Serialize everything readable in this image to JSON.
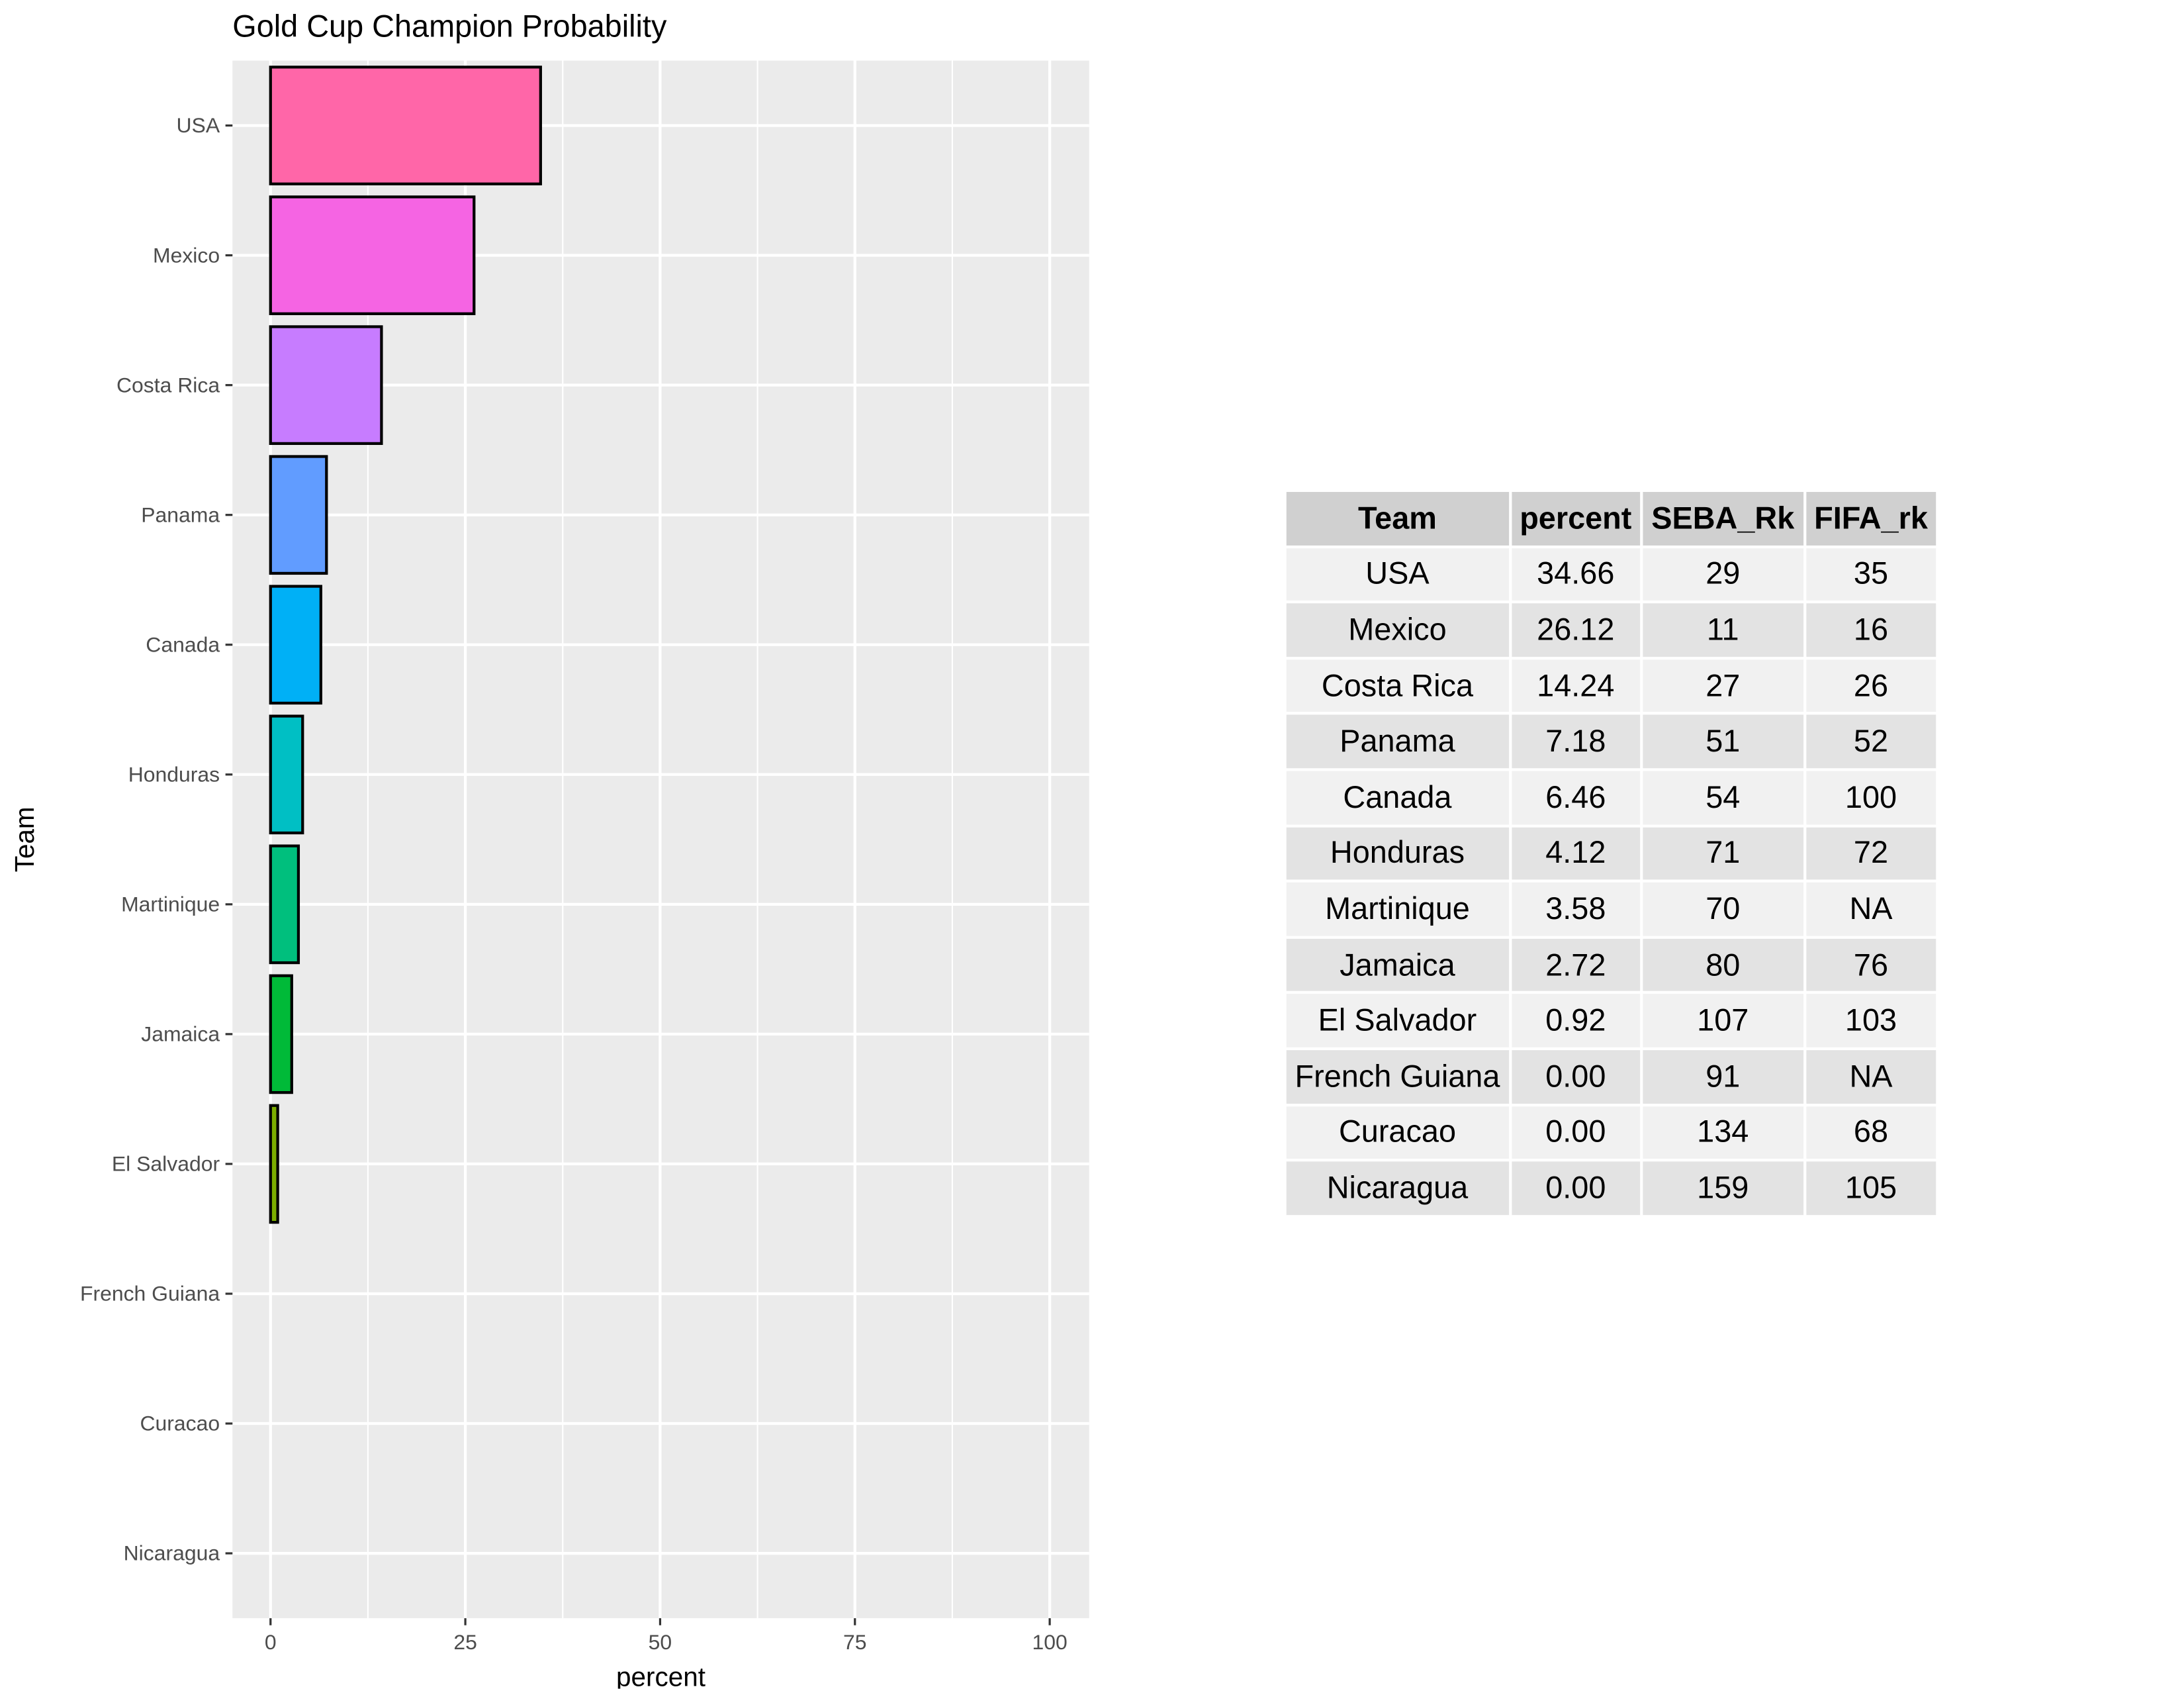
{
  "chart_data": {
    "type": "bar",
    "orientation": "horizontal",
    "title": "Gold Cup Champion Probability",
    "xlabel": "percent",
    "ylabel": "Team",
    "xlim": [
      0,
      100
    ],
    "xticks": [
      0,
      25,
      50,
      75,
      100
    ],
    "categories": [
      "USA",
      "Mexico",
      "Costa Rica",
      "Panama",
      "Canada",
      "Honduras",
      "Martinique",
      "Jamaica",
      "El Salvador",
      "French Guiana",
      "Curacao",
      "Nicaragua"
    ],
    "values": [
      34.66,
      26.12,
      14.24,
      7.18,
      6.46,
      4.12,
      3.58,
      2.72,
      0.92,
      0.0,
      0.0,
      0.0
    ],
    "colors": [
      "#FF66A8",
      "#F564E3",
      "#C77CFF",
      "#619CFF",
      "#00B0F6",
      "#00BFC4",
      "#00BF7D",
      "#00BA38",
      "#7CAE00",
      "#AEA200",
      "#DE8C00",
      "#F8766D"
    ],
    "grid": true
  },
  "table": {
    "headers": [
      "Team",
      "percent",
      "SEBA_Rk",
      "FIFA_rk"
    ],
    "rows": [
      [
        "USA",
        "34.66",
        "29",
        "35"
      ],
      [
        "Mexico",
        "26.12",
        "11",
        "16"
      ],
      [
        "Costa Rica",
        "14.24",
        "27",
        "26"
      ],
      [
        "Panama",
        "7.18",
        "51",
        "52"
      ],
      [
        "Canada",
        "6.46",
        "54",
        "100"
      ],
      [
        "Honduras",
        "4.12",
        "71",
        "72"
      ],
      [
        "Martinique",
        "3.58",
        "70",
        "NA"
      ],
      [
        "Jamaica",
        "2.72",
        "80",
        "76"
      ],
      [
        "El Salvador",
        "0.92",
        "107",
        "103"
      ],
      [
        "French Guiana",
        "0.00",
        "91",
        "NA"
      ],
      [
        "Curacao",
        "0.00",
        "134",
        "68"
      ],
      [
        "Nicaragua",
        "0.00",
        "159",
        "105"
      ]
    ]
  }
}
